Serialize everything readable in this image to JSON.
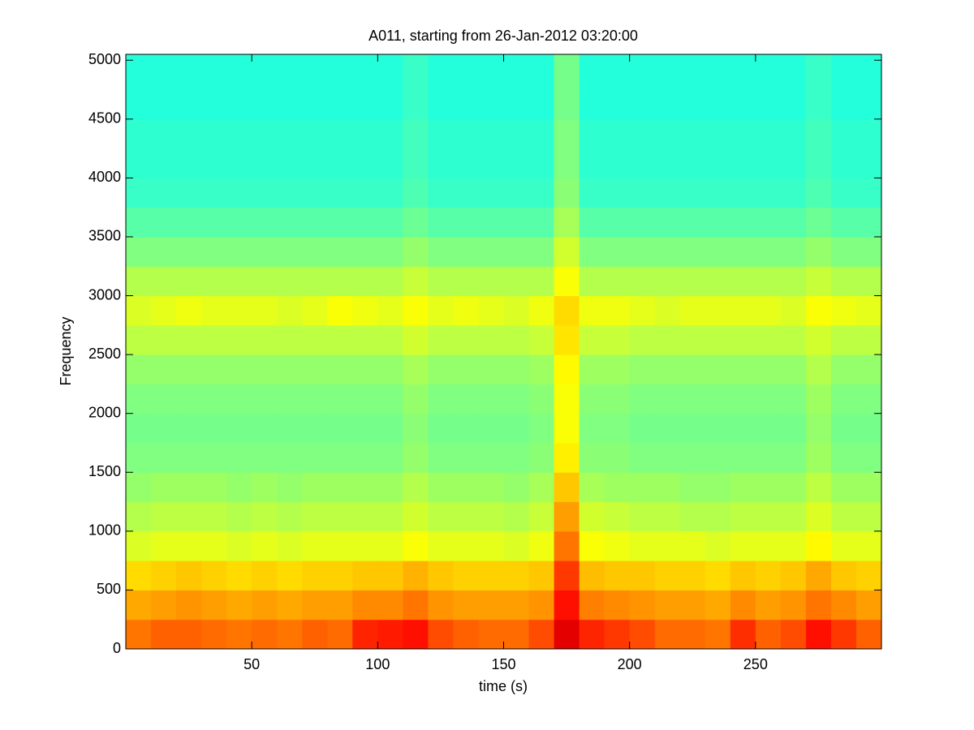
{
  "chart_data": {
    "type": "heatmap",
    "title": "A011, starting from 26-Jan-2012 03:20:00",
    "x_label": "time (s)",
    "y_label": "Frequency",
    "xlim": [
      0,
      300
    ],
    "ylim": [
      0,
      5050
    ],
    "xticks": [
      50,
      100,
      150,
      200,
      250
    ],
    "yticks": [
      0,
      500,
      1000,
      1500,
      2000,
      2500,
      3000,
      3500,
      4000,
      4500,
      5000
    ],
    "colormap": "jet",
    "clim": [
      0,
      100
    ],
    "x_edges": [
      0,
      10,
      20,
      30,
      40,
      50,
      60,
      70,
      80,
      90,
      100,
      110,
      120,
      130,
      140,
      150,
      160,
      170,
      180,
      190,
      200,
      210,
      220,
      230,
      240,
      250,
      260,
      270,
      280,
      290,
      300
    ],
    "y_edges": [
      0,
      250,
      500,
      750,
      1000,
      1250,
      1500,
      1750,
      2000,
      2250,
      2500,
      2750,
      3000,
      3250,
      3500,
      3750,
      4000,
      4250,
      4500,
      4750,
      5050
    ],
    "z": [
      [
        76,
        78,
        78,
        77,
        76,
        77,
        76,
        78,
        77,
        84,
        85,
        86,
        80,
        78,
        77,
        77,
        80,
        90,
        84,
        82,
        80,
        77,
        77,
        76,
        83,
        78,
        80,
        86,
        82,
        78
      ],
      [
        71,
        72,
        73,
        72,
        71,
        72,
        71,
        72,
        72,
        74,
        74,
        76,
        73,
        72,
        72,
        72,
        73,
        86,
        75,
        74,
        73,
        72,
        72,
        71,
        74,
        72,
        73,
        76,
        74,
        72
      ],
      [
        66,
        67,
        68,
        67,
        66,
        67,
        66,
        67,
        67,
        68,
        68,
        70,
        68,
        67,
        67,
        67,
        68,
        82,
        69,
        68,
        68,
        67,
        67,
        66,
        68,
        67,
        68,
        71,
        68,
        67
      ],
      [
        59,
        60,
        60,
        60,
        59,
        60,
        59,
        60,
        60,
        60,
        60,
        62,
        60,
        60,
        60,
        59,
        61,
        76,
        62,
        61,
        60,
        60,
        60,
        59,
        60,
        60,
        60,
        63,
        60,
        60
      ],
      [
        55,
        56,
        56,
        56,
        55,
        56,
        55,
        56,
        56,
        56,
        56,
        58,
        56,
        56,
        56,
        55,
        57,
        72,
        58,
        57,
        56,
        56,
        55,
        55,
        56,
        56,
        56,
        59,
        56,
        56
      ],
      [
        52,
        53,
        53,
        53,
        52,
        53,
        52,
        53,
        53,
        53,
        53,
        55,
        53,
        53,
        53,
        52,
        54,
        68,
        54,
        53,
        53,
        53,
        52,
        52,
        53,
        53,
        53,
        56,
        53,
        53
      ],
      [
        50,
        50,
        50,
        50,
        50,
        50,
        50,
        50,
        50,
        50,
        50,
        52,
        50,
        50,
        50,
        50,
        51,
        64,
        51,
        51,
        50,
        50,
        50,
        50,
        50,
        50,
        50,
        53,
        50,
        50
      ],
      [
        49,
        49,
        49,
        49,
        49,
        49,
        49,
        49,
        49,
        49,
        49,
        51,
        49,
        49,
        49,
        49,
        50,
        62,
        50,
        50,
        49,
        49,
        49,
        49,
        49,
        49,
        49,
        52,
        49,
        49
      ],
      [
        50,
        50,
        50,
        50,
        50,
        50,
        50,
        50,
        50,
        50,
        50,
        52,
        50,
        50,
        50,
        50,
        51,
        62,
        51,
        51,
        50,
        50,
        50,
        50,
        50,
        50,
        50,
        53,
        50,
        50
      ],
      [
        52,
        52,
        52,
        52,
        52,
        52,
        52,
        52,
        52,
        52,
        52,
        54,
        52,
        52,
        52,
        52,
        53,
        63,
        53,
        53,
        52,
        52,
        52,
        52,
        52,
        52,
        52,
        55,
        52,
        52
      ],
      [
        56,
        56,
        56,
        56,
        56,
        56,
        56,
        56,
        56,
        56,
        56,
        58,
        56,
        56,
        56,
        56,
        57,
        65,
        57,
        57,
        56,
        56,
        56,
        56,
        56,
        56,
        56,
        58,
        56,
        56
      ],
      [
        59,
        60,
        61,
        60,
        60,
        60,
        59,
        60,
        62,
        61,
        60,
        62,
        60,
        61,
        60,
        59,
        61,
        66,
        61,
        61,
        60,
        59,
        60,
        60,
        60,
        60,
        59,
        62,
        61,
        60
      ],
      [
        55,
        55,
        55,
        55,
        55,
        55,
        55,
        55,
        55,
        55,
        55,
        57,
        55,
        55,
        55,
        55,
        55,
        62,
        55,
        55,
        55,
        55,
        55,
        55,
        55,
        55,
        55,
        57,
        55,
        55
      ],
      [
        50,
        50,
        50,
        50,
        50,
        50,
        50,
        50,
        50,
        50,
        50,
        52,
        50,
        50,
        50,
        50,
        50,
        58,
        50,
        50,
        50,
        50,
        50,
        50,
        50,
        50,
        50,
        52,
        50,
        50
      ],
      [
        46,
        46,
        46,
        46,
        46,
        46,
        46,
        46,
        46,
        46,
        46,
        48,
        46,
        46,
        46,
        46,
        46,
        54,
        46,
        46,
        46,
        46,
        46,
        46,
        46,
        46,
        46,
        48,
        46,
        46
      ],
      [
        43,
        43,
        43,
        43,
        43,
        43,
        43,
        43,
        43,
        43,
        43,
        45,
        43,
        43,
        43,
        43,
        43,
        51,
        43,
        43,
        43,
        43,
        43,
        43,
        43,
        43,
        43,
        45,
        43,
        43
      ],
      [
        42,
        42,
        42,
        42,
        42,
        42,
        42,
        42,
        42,
        42,
        42,
        44,
        42,
        42,
        42,
        42,
        42,
        50,
        42,
        42,
        42,
        42,
        42,
        42,
        42,
        42,
        42,
        44,
        42,
        42
      ],
      [
        42,
        42,
        42,
        42,
        42,
        42,
        42,
        42,
        42,
        42,
        42,
        44,
        42,
        42,
        42,
        42,
        42,
        50,
        42,
        42,
        42,
        42,
        42,
        42,
        42,
        42,
        42,
        44,
        42,
        42
      ],
      [
        41,
        41,
        41,
        41,
        41,
        41,
        41,
        41,
        41,
        41,
        41,
        43,
        41,
        41,
        41,
        41,
        41,
        49,
        41,
        41,
        41,
        41,
        41,
        41,
        41,
        41,
        41,
        43,
        41,
        41
      ],
      [
        41,
        41,
        41,
        41,
        41,
        41,
        41,
        41,
        41,
        41,
        41,
        43,
        41,
        41,
        41,
        41,
        41,
        49,
        41,
        41,
        41,
        41,
        41,
        41,
        41,
        41,
        41,
        43,
        41,
        41
      ]
    ]
  }
}
